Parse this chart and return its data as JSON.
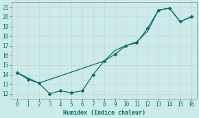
{
  "xlabel": "Humidex (Indice chaleur)",
  "ylabel": "",
  "background_color": "#cceaea",
  "grid_color": "#b0d4d4",
  "line_color": "#006e6e",
  "xlim": [
    -0.5,
    16.5
  ],
  "ylim": [
    11.5,
    21.5
  ],
  "xticks": [
    0,
    1,
    2,
    3,
    4,
    5,
    6,
    7,
    8,
    9,
    10,
    11,
    12,
    13,
    14,
    15,
    16
  ],
  "yticks": [
    12,
    13,
    14,
    15,
    16,
    17,
    18,
    19,
    20,
    21
  ],
  "line1_x": [
    0,
    1,
    2,
    3,
    4,
    5,
    6,
    7,
    8,
    9,
    10,
    11,
    12,
    13,
    14,
    15,
    16
  ],
  "line1_y": [
    14.2,
    13.5,
    13.1,
    12.0,
    12.3,
    12.1,
    12.3,
    14.0,
    15.4,
    16.1,
    17.0,
    17.3,
    18.8,
    20.7,
    20.9,
    19.5,
    20.0
  ],
  "line2_x": [
    0,
    2,
    8,
    9,
    10,
    11,
    12,
    13,
    14,
    15,
    16
  ],
  "line2_y": [
    14.2,
    13.1,
    15.4,
    16.5,
    17.0,
    17.4,
    18.5,
    20.7,
    20.9,
    19.5,
    20.0
  ]
}
